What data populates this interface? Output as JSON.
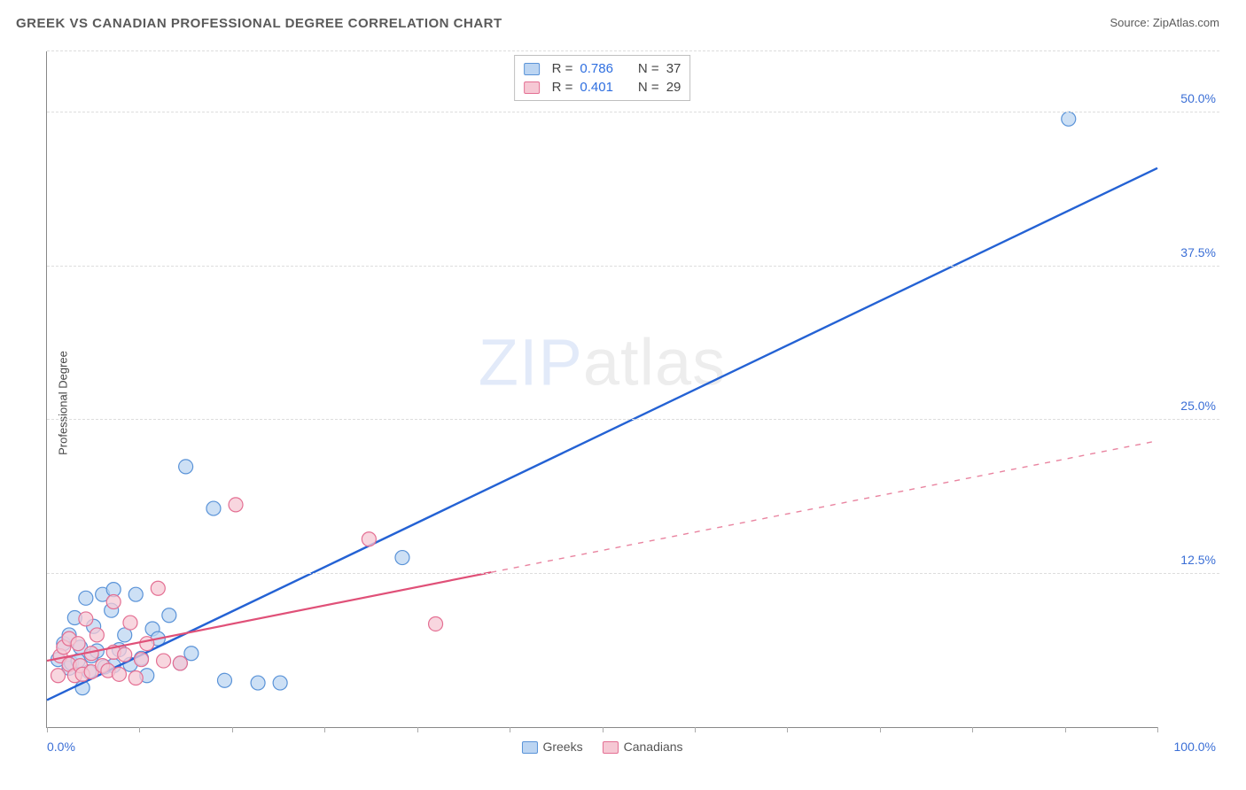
{
  "title": "GREEK VS CANADIAN PROFESSIONAL DEGREE CORRELATION CHART",
  "source_prefix": "Source: ",
  "source_name": "ZipAtlas.com",
  "ylabel": "Professional Degree",
  "watermark_left": "ZIP",
  "watermark_right": "atlas",
  "chart": {
    "type": "scatter-with-regression",
    "background_color": "#ffffff",
    "grid_color": "#dddddd",
    "axis_color": "#888888",
    "tick_label_color": "#3b6fd6",
    "xlim": [
      0,
      100
    ],
    "ylim": [
      0,
      55
    ],
    "x_ticks_minor": [
      0,
      8.33,
      16.67,
      25,
      33.33,
      41.67,
      50,
      58.33,
      66.67,
      75,
      83.33,
      91.67,
      100
    ],
    "y_gridlines": [
      12.5,
      25,
      37.5,
      50,
      55
    ],
    "y_tick_labels": [
      {
        "v": 12.5,
        "label": "12.5%"
      },
      {
        "v": 25,
        "label": "25.0%"
      },
      {
        "v": 37.5,
        "label": "37.5%"
      },
      {
        "v": 50,
        "label": "50.0%"
      }
    ],
    "x_tick_labels": [
      {
        "v": 0,
        "label": "0.0%",
        "align": "left"
      },
      {
        "v": 100,
        "label": "100.0%",
        "align": "right"
      }
    ],
    "series": [
      {
        "name": "Greeks",
        "key": "greeks",
        "marker_fill": "#bcd5f2",
        "marker_stroke": "#5a93d8",
        "marker_radius": 8,
        "line_color": "#2462d4",
        "line_width": 2.4,
        "R": "0.786",
        "N": "37",
        "regression_solid": {
          "x1": 0,
          "y1": 2.2,
          "x2": 100,
          "y2": 45.5
        },
        "regression_dashed": null,
        "points": [
          [
            1,
            5.5
          ],
          [
            1.5,
            6.8
          ],
          [
            2,
            4.8
          ],
          [
            2,
            7.5
          ],
          [
            2.2,
            5.2
          ],
          [
            2.5,
            8.9
          ],
          [
            2.8,
            5.4
          ],
          [
            3,
            6.5
          ],
          [
            3.2,
            3.2
          ],
          [
            3.5,
            10.5
          ],
          [
            3.8,
            4.5
          ],
          [
            4,
            5.8
          ],
          [
            4.2,
            8.2
          ],
          [
            4.5,
            6.2
          ],
          [
            5,
            10.8
          ],
          [
            5.2,
            4.9
          ],
          [
            5.8,
            9.5
          ],
          [
            6,
            11.2
          ],
          [
            6,
            5
          ],
          [
            6.5,
            6.3
          ],
          [
            7,
            7.5
          ],
          [
            7.5,
            5.1
          ],
          [
            8,
            10.8
          ],
          [
            8.5,
            5.6
          ],
          [
            9,
            4.2
          ],
          [
            9.5,
            8
          ],
          [
            10,
            7.2
          ],
          [
            11,
            9.1
          ],
          [
            12,
            5.2
          ],
          [
            12.5,
            21.2
          ],
          [
            13,
            6.0
          ],
          [
            15,
            17.8
          ],
          [
            16,
            3.8
          ],
          [
            19,
            3.6
          ],
          [
            21,
            3.6
          ],
          [
            32,
            13.8
          ],
          [
            92,
            49.5
          ]
        ]
      },
      {
        "name": "Canadians",
        "key": "canadians",
        "marker_fill": "#f6c8d4",
        "marker_stroke": "#e46f93",
        "marker_radius": 8,
        "line_color": "#e05078",
        "line_width": 2.2,
        "R": "0.401",
        "N": "29",
        "regression_solid": {
          "x1": 0,
          "y1": 5.4,
          "x2": 40,
          "y2": 12.6
        },
        "regression_dashed": {
          "x1": 40,
          "y1": 12.6,
          "x2": 100,
          "y2": 23.3
        },
        "points": [
          [
            1,
            4.2
          ],
          [
            1.2,
            5.8
          ],
          [
            1.5,
            6.5
          ],
          [
            2,
            5.1
          ],
          [
            2,
            7.2
          ],
          [
            2.5,
            4.2
          ],
          [
            2.8,
            6.8
          ],
          [
            3,
            5.0
          ],
          [
            3.2,
            4.3
          ],
          [
            3.5,
            8.8
          ],
          [
            4,
            6.0
          ],
          [
            4,
            4.5
          ],
          [
            4.5,
            7.5
          ],
          [
            5,
            5.0
          ],
          [
            5.5,
            4.6
          ],
          [
            6,
            6.1
          ],
          [
            6,
            10.2
          ],
          [
            6.5,
            4.3
          ],
          [
            7,
            5.9
          ],
          [
            7.5,
            8.5
          ],
          [
            8,
            4.0
          ],
          [
            8.5,
            5.5
          ],
          [
            9,
            6.8
          ],
          [
            10,
            11.3
          ],
          [
            10.5,
            5.4
          ],
          [
            12,
            5.2
          ],
          [
            17,
            18.1
          ],
          [
            29,
            15.3
          ],
          [
            35,
            8.4
          ]
        ]
      }
    ],
    "bottom_legend": [
      {
        "key": "greeks",
        "label": "Greeks"
      },
      {
        "key": "canadians",
        "label": "Canadians"
      }
    ],
    "stat_labels": {
      "R": "R =",
      "N": "N ="
    }
  }
}
